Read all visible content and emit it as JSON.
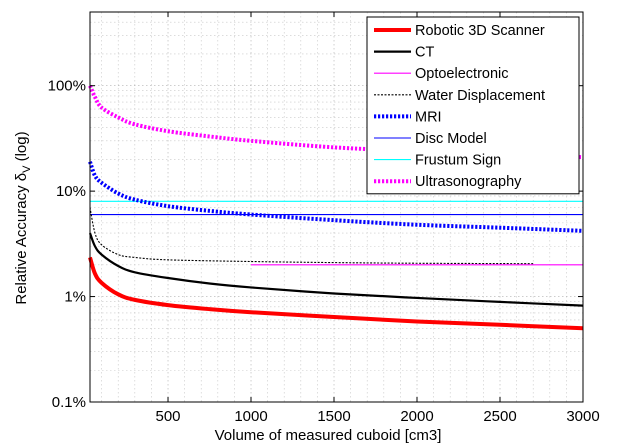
{
  "chart_data": {
    "type": "line",
    "xlabel": "Volume of measured cuboid [cm3]",
    "ylabel_main": "Relative Accuracy δ",
    "ylabel_sub": "V",
    "ylabel_suffix": " (log)",
    "x_scale": "linear",
    "y_scale": "log",
    "xlim": [
      30,
      3000
    ],
    "ylim": [
      0.001,
      5
    ],
    "x_ticks": [
      500,
      1000,
      1500,
      2000,
      2500,
      3000
    ],
    "x_tick_labels": [
      "500",
      "1000",
      "1500",
      "2000",
      "2500",
      "3000"
    ],
    "y_ticks": [
      0.001,
      0.01,
      0.1,
      1
    ],
    "y_tick_labels": [
      "0.1%",
      "1%",
      "10%",
      "100%"
    ],
    "grid": true,
    "legend_position": "top-right",
    "series": [
      {
        "name": "Robotic 3D Scanner",
        "color": "#ff0000",
        "style": "solid",
        "width": "thick",
        "x": [
          30,
          60,
          100,
          200,
          300,
          500,
          750,
          1000,
          1500,
          2000,
          2500,
          3000
        ],
        "y": [
          0.0235,
          0.0165,
          0.0135,
          0.0105,
          0.0093,
          0.0083,
          0.0076,
          0.0071,
          0.0064,
          0.0058,
          0.0054,
          0.005
        ]
      },
      {
        "name": "CT",
        "color": "#000000",
        "style": "solid",
        "width": "medium",
        "x": [
          30,
          60,
          100,
          200,
          300,
          500,
          750,
          1000,
          1500,
          2000,
          2500,
          3000
        ],
        "y": [
          0.04,
          0.03,
          0.025,
          0.0195,
          0.017,
          0.015,
          0.0133,
          0.0122,
          0.0107,
          0.0097,
          0.0089,
          0.0082
        ]
      },
      {
        "name": "Optoelectronic",
        "color": "#ff00ff",
        "style": "solid",
        "width": "thin",
        "x": [
          1000,
          3000
        ],
        "y": [
          0.02,
          0.02
        ]
      },
      {
        "name": "Water Displacement",
        "color": "#000000",
        "style": "dotted",
        "width": "thin",
        "x": [
          30,
          60,
          100,
          200,
          300,
          500,
          1000,
          1500,
          2000,
          2700
        ],
        "y": [
          0.07,
          0.04,
          0.031,
          0.025,
          0.0235,
          0.0223,
          0.0215,
          0.021,
          0.0207,
          0.0205
        ]
      },
      {
        "name": "MRI",
        "color": "#0000ff",
        "style": "dotted",
        "width": "thick",
        "x": [
          30,
          60,
          100,
          200,
          300,
          500,
          750,
          1000,
          1500,
          2000,
          2500,
          3000
        ],
        "y": [
          0.19,
          0.14,
          0.12,
          0.095,
          0.083,
          0.072,
          0.065,
          0.06,
          0.053,
          0.048,
          0.045,
          0.042
        ]
      },
      {
        "name": "Disc Model",
        "color": "#0000ff",
        "style": "solid",
        "width": "thin",
        "x": [
          30,
          3000
        ],
        "y": [
          0.06,
          0.06
        ]
      },
      {
        "name": "Frustum Sign",
        "color": "#00ffff",
        "style": "solid",
        "width": "thin",
        "x": [
          30,
          3000
        ],
        "y": [
          0.08,
          0.08
        ]
      },
      {
        "name": "Ultrasonography",
        "color": "#ff00ff",
        "style": "dotted",
        "width": "thick",
        "x": [
          30,
          60,
          100,
          200,
          300,
          500,
          750,
          1000,
          1500,
          2000,
          2500,
          3000
        ],
        "y": [
          1.0,
          0.78,
          0.62,
          0.5,
          0.43,
          0.37,
          0.33,
          0.3,
          0.26,
          0.24,
          0.225,
          0.21
        ]
      }
    ]
  }
}
